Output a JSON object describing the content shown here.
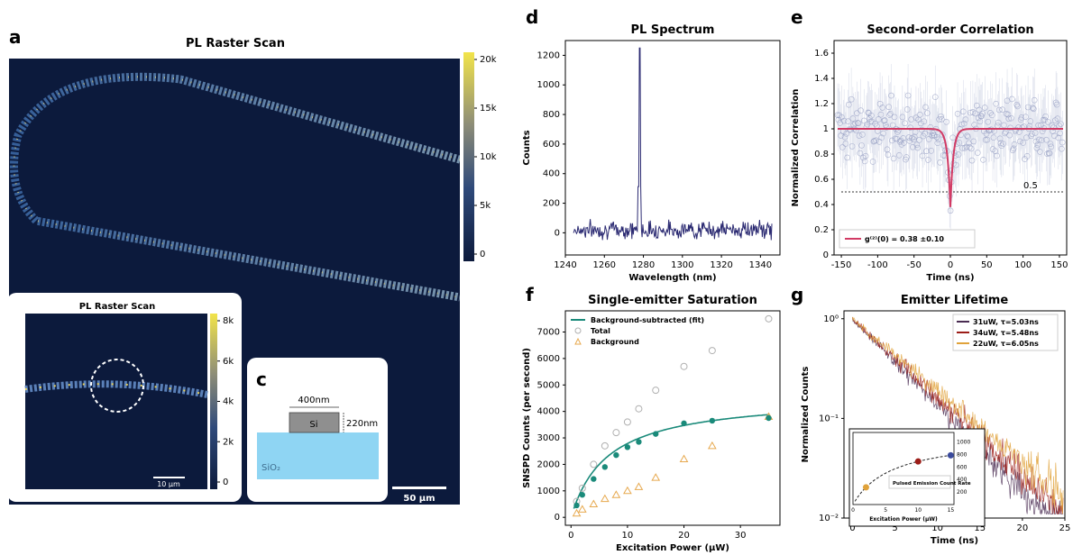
{
  "colors": {
    "accent": "#1a8a7a",
    "navy": "#2b2a72",
    "red_fit": "#d23a64",
    "map_dark": "#0c1a3c",
    "map_bright": "#f2d94a",
    "oxide": "#8fd5f3",
    "silicon": "#8f8f8f",
    "background_tri": "#e7a94f",
    "total_circ": "#b0b0b0",
    "life_1": "#4a2c52",
    "life_2": "#9c1d18",
    "life_3": "#e0a23a"
  },
  "panels": {
    "a": {
      "letter": "a",
      "title": "PL Raster Scan",
      "scalebar": "50 µm",
      "colorbar_ticks": [
        "20k",
        "15k",
        "10k",
        "5k",
        "0"
      ]
    },
    "b": {
      "letter": "b",
      "title": "PL Raster Scan",
      "scalebar": "10 µm",
      "colorbar_ticks": [
        "8k",
        "6k",
        "4k",
        "2k",
        "0"
      ]
    },
    "c": {
      "letter": "c",
      "width_label": "400nm",
      "height_label": "220nm",
      "si_label": "Si",
      "oxide_label": "SiO₂"
    },
    "d": {
      "letter": "d"
    },
    "e": {
      "letter": "e"
    },
    "f": {
      "letter": "f"
    },
    "g": {
      "letter": "g"
    }
  },
  "chart_data": [
    {
      "id": "d",
      "type": "line",
      "title": "PL Spectrum",
      "xlabel": "Wavelength (nm)",
      "ylabel": "Counts",
      "xlim": [
        1240,
        1350
      ],
      "ylim": [
        -150,
        1300
      ],
      "xticks": [
        1240,
        1260,
        1280,
        1300,
        1320,
        1340
      ],
      "yticks": [
        0,
        200,
        400,
        600,
        800,
        1000,
        1200
      ],
      "series": [
        {
          "peak_x": 1278,
          "peak_y": 1250,
          "baseline": 20,
          "noise": 50,
          "x_start": 1244,
          "x_end": 1346
        }
      ]
    },
    {
      "id": "e",
      "type": "scatter",
      "title": "Second-order Correlation",
      "xlabel": "Time (ns)",
      "ylabel": "Normalized Correlation",
      "xlim": [
        -160,
        160
      ],
      "ylim": [
        0,
        1.7
      ],
      "xticks": [
        -150,
        -100,
        -50,
        0,
        50,
        100,
        150
      ],
      "yticks": [
        0.0,
        0.2,
        0.4,
        0.6,
        0.8,
        1.0,
        1.2,
        1.4,
        1.6
      ],
      "reference_line": 0.5,
      "reference_label": "0.5",
      "fit": {
        "g2_zero": 0.38,
        "tau_ns": 4,
        "baseline": 1.0
      },
      "legend": "g⁽²⁾(0) = 0.38 ±0.10"
    },
    {
      "id": "f",
      "type": "scatter",
      "title": "Single-emitter Saturation",
      "xlabel": "Excitation Power (µW)",
      "ylabel": "SNSPD Counts (per second)",
      "xlim": [
        -1,
        37
      ],
      "ylim": [
        -300,
        7800
      ],
      "xticks": [
        0,
        10,
        20,
        30
      ],
      "yticks": [
        0,
        1000,
        2000,
        3000,
        4000,
        5000,
        6000,
        7000
      ],
      "legend": [
        "Background-subtracted (fit)",
        "Total",
        "Background"
      ],
      "x": [
        1,
        2,
        4,
        6,
        8,
        10,
        12,
        15,
        20,
        25,
        35
      ],
      "series": [
        {
          "name": "Background-subtracted (fit)",
          "values": [
            450,
            850,
            1450,
            1900,
            2350,
            2650,
            2850,
            3150,
            3550,
            3650,
            3750
          ]
        },
        {
          "name": "Total",
          "values": [
            600,
            1100,
            2000,
            2700,
            3200,
            3600,
            4100,
            4800,
            5700,
            6300,
            7500
          ]
        },
        {
          "name": "Background",
          "values": [
            150,
            300,
            500,
            700,
            850,
            1000,
            1150,
            1500,
            2200,
            2700,
            3800
          ]
        }
      ],
      "fit": {
        "Isat": 4600,
        "Psat": 6.5
      }
    },
    {
      "id": "g",
      "type": "line",
      "title": "Emitter Lifetime",
      "xlabel": "Time (ns)",
      "ylabel": "Normalized Counts",
      "xlim": [
        -1,
        25
      ],
      "ylim_log": [
        0.01,
        1.2
      ],
      "xticks": [
        0,
        5,
        10,
        15,
        20,
        25
      ],
      "yticks_log": [
        "10⁰",
        "10⁻¹",
        "10⁻²"
      ],
      "series": [
        {
          "name": "31uW, τ=5.03ns",
          "tau": 5.03
        },
        {
          "name": "34uW, τ=5.48ns",
          "tau": 5.48
        },
        {
          "name": "22uW, τ=6.05ns",
          "tau": 6.05
        }
      ],
      "inset": {
        "xlabel": "Excitation Power (µW)",
        "legend": "Pulsed Emission Count Rate",
        "xticks": [
          0,
          5,
          10,
          15
        ],
        "yticks": [
          200,
          400,
          600,
          800,
          1000
        ]
      }
    }
  ]
}
